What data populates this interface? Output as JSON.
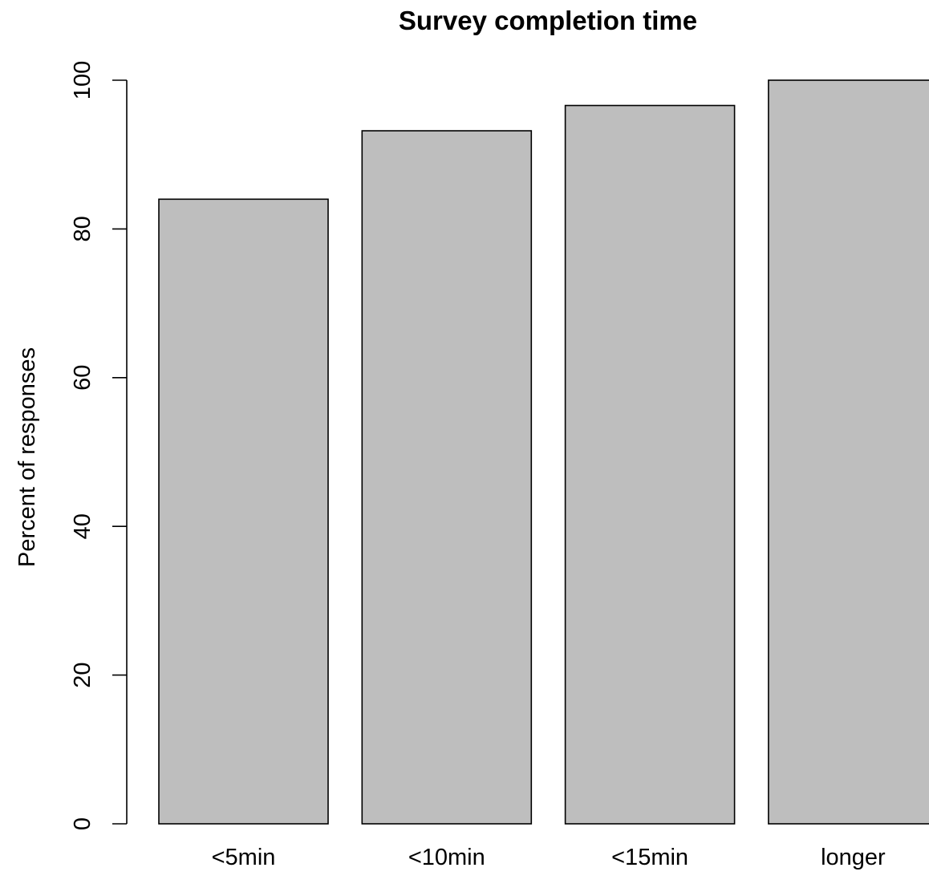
{
  "chart_data": {
    "type": "bar",
    "title": "Survey completion time",
    "xlabel": "",
    "ylabel": "Percent of responses",
    "categories": [
      "<5min",
      "<10min",
      "<15min",
      "longer"
    ],
    "values": [
      84,
      93.2,
      96.6,
      100
    ],
    "ylim": [
      0,
      100
    ],
    "yticks": [
      "0",
      "20",
      "40",
      "60",
      "80",
      "100"
    ],
    "grid": false,
    "legend": "none",
    "bar_color": "#bebebe",
    "bar_border_color": "#000000"
  }
}
